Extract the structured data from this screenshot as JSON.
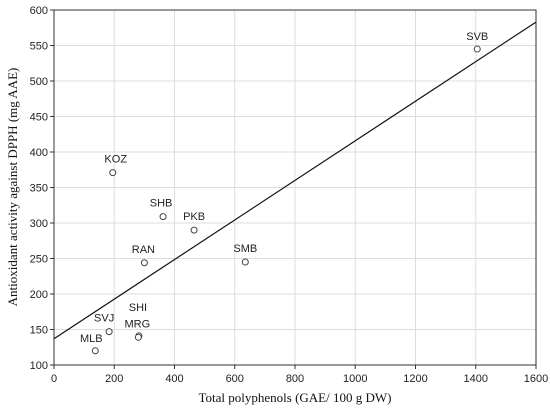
{
  "chart_data": {
    "type": "scatter",
    "title": "",
    "xlabel": "Total polyphenols (GAE/ 100 g DW)",
    "ylabel": "Antioxidant activity against DPPH (mg AAE)",
    "xlim": [
      0,
      1600
    ],
    "ylim": [
      100,
      600
    ],
    "x_ticks": [
      "0",
      "200",
      "400",
      "600",
      "800",
      "1000",
      "1200",
      "1400",
      "1600"
    ],
    "y_ticks": [
      "100",
      "150",
      "200",
      "250",
      "300",
      "350",
      "400",
      "450",
      "500",
      "550",
      "600"
    ],
    "grid": true,
    "points": [
      {
        "label": "SVB",
        "x": 1405,
        "y": 545
      },
      {
        "label": "KOZ",
        "x": 195,
        "y": 371
      },
      {
        "label": "SHB",
        "x": 362,
        "y": 309
      },
      {
        "label": "PKB",
        "x": 465,
        "y": 290
      },
      {
        "label": "RAN",
        "x": 300,
        "y": 244
      },
      {
        "label": "SMB",
        "x": 635,
        "y": 245
      },
      {
        "label": "SHI",
        "x": 282,
        "y": 141
      },
      {
        "label": "MRG",
        "x": 280,
        "y": 139
      },
      {
        "label": "SVJ",
        "x": 183,
        "y": 147
      },
      {
        "label": "MLB",
        "x": 137,
        "y": 120
      }
    ],
    "trendline": {
      "x": [
        0,
        1600
      ],
      "y": [
        137,
        583
      ]
    }
  },
  "colors": {
    "grid": "#dddddd",
    "axis": "#333333",
    "marker": "#444444",
    "line": "#111111"
  }
}
